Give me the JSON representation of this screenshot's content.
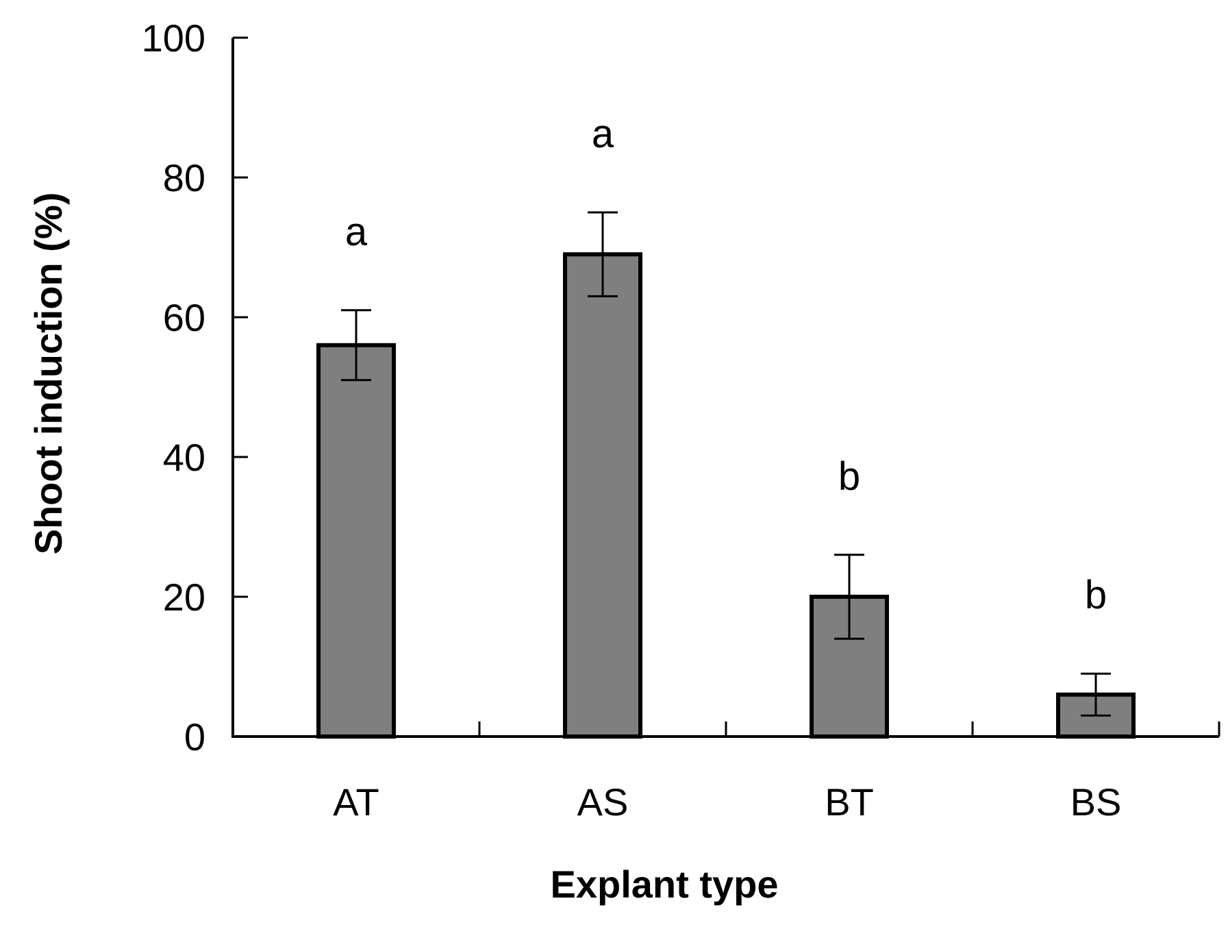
{
  "chart_data": {
    "type": "bar",
    "title": "",
    "xlabel": "Explant type",
    "ylabel": "Shoot induction (%)",
    "ylim": [
      0,
      100
    ],
    "yticks": [
      0,
      20,
      40,
      60,
      80,
      100
    ],
    "categories": [
      "AT",
      "AS",
      "BT",
      "BS"
    ],
    "values": [
      56,
      69,
      20,
      6
    ],
    "errors": [
      5,
      6,
      6,
      3
    ],
    "significance": [
      "a",
      "a",
      "b",
      "b"
    ],
    "grid": false,
    "colors": {
      "bar_fill": "#7f7f7f",
      "bar_stroke": "#000000",
      "axis": "#000000"
    }
  }
}
